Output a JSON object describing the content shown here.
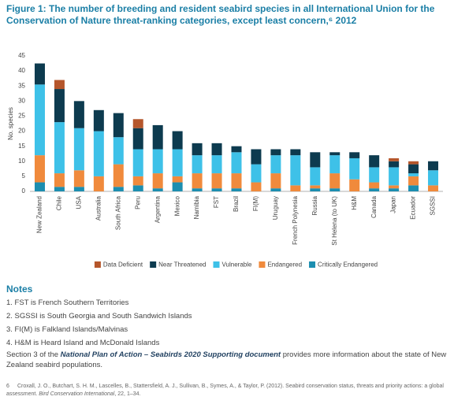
{
  "chart_data": {
    "type": "stacked-bar",
    "title": "Figure 1: The number of breeding and resident seabird species in all International Union for the Conservation of Nature threat-ranking categories, except least concern,⁶ 2012",
    "y_label": "No. species",
    "categories": [
      "New Zealand",
      "Chile",
      "USA",
      "Australia",
      "South Africa",
      "Peru",
      "Argentina",
      "Mexico",
      "Namibia",
      "FST",
      "Brazil",
      "FI(M)",
      "Uruguay",
      "French Polynesia",
      "Russia",
      "St Helena (to UK)",
      "H&M",
      "Canada",
      "Japan",
      "Ecuador",
      "SGSSI"
    ],
    "series": [
      {
        "name": "Data Deficient",
        "color": "#b5562b",
        "values": [
          0,
          3,
          0,
          0,
          0,
          3,
          0,
          0,
          0,
          0,
          0,
          0,
          0,
          0,
          0,
          0,
          0,
          0,
          1,
          1,
          0
        ]
      },
      {
        "name": "Near Threatened",
        "color": "#0d3b4f",
        "values": [
          7,
          11,
          9,
          7,
          8,
          7,
          8,
          6,
          4,
          4,
          2,
          5,
          2,
          2,
          5,
          1,
          2,
          4,
          2,
          3,
          3
        ]
      },
      {
        "name": "Vulnerable",
        "color": "#3ec1e8",
        "values": [
          23.5,
          17,
          14,
          15,
          9,
          9,
          8,
          9,
          6,
          6,
          7,
          6,
          6,
          10,
          6,
          6,
          7,
          5,
          6,
          1,
          5
        ]
      },
      {
        "name": "Endangered",
        "color": "#f08a3c",
        "values": [
          9,
          4.5,
          5.5,
          5,
          7.5,
          3,
          5,
          2,
          5,
          5,
          5,
          3,
          5,
          2,
          1,
          5,
          4,
          2,
          1,
          3,
          2
        ]
      },
      {
        "name": "Critically Endangered",
        "color": "#1c8eb0",
        "values": [
          3,
          1.5,
          1.5,
          0,
          1.5,
          2,
          1,
          3,
          1,
          1,
          1,
          0,
          1,
          0,
          1,
          1,
          0,
          1,
          1,
          2,
          0
        ]
      }
    ],
    "ylim": [
      0,
      45
    ],
    "yticks": [
      0,
      5,
      10,
      15,
      20,
      25,
      30,
      35,
      40,
      45
    ],
    "grid": false,
    "legend": "bottom"
  },
  "notes": {
    "heading": "Notes",
    "items": [
      "1.  FST is French Southern Territories",
      "2.  SGSSI is South Georgia and South Sandwich Islands",
      "3.  FI(M) is Falkland Islands/Malvinas",
      "4.  H&M is Heard Island and McDonald Islands"
    ]
  },
  "paragraph": {
    "before": "Section 3 of the ",
    "emphasis": "National Plan of Action – Seabirds 2020 Supporting document",
    "after": " provides more information about the state of New Zealand seabird populations."
  },
  "footnote": {
    "number": "6",
    "before": "Croxall, J. O., Butchart, S. H. M., Lascelles, B., Stattersfield, A. J., Sullivan, B., Symes, A., & Taylor, P. (2012). Seabird conservation status, threats and priority actions: a global assessment. ",
    "journal": "Bird Conservation International",
    "after": ", 22, 1–34."
  }
}
